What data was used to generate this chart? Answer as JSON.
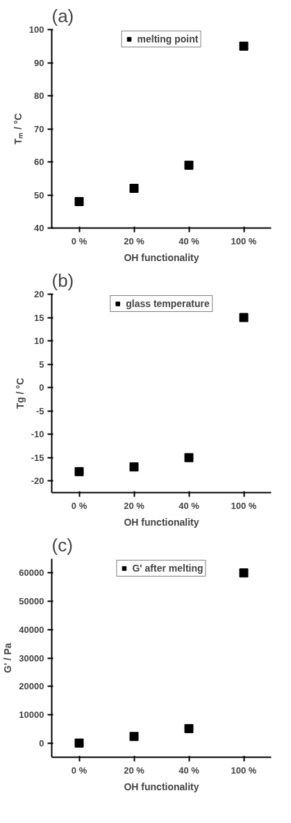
{
  "chart_data": [
    {
      "type": "scatter",
      "title": "(a)",
      "xlabel": "OH functionality",
      "ylabel": "Tₘ / °C",
      "categories": [
        "0 %",
        "20 %",
        "40 %",
        "100 %"
      ],
      "series": [
        {
          "name": "melting point",
          "color": "#000000",
          "values": [
            48,
            52,
            59,
            95
          ]
        }
      ],
      "ylim": [
        40,
        100
      ],
      "yticks": [
        40,
        50,
        60,
        70,
        80,
        90,
        100
      ],
      "marker": "square",
      "legend": "top",
      "grid": false
    },
    {
      "type": "scatter",
      "title": "(b)",
      "xlabel": "OH functionality",
      "ylabel": "Tg / °C",
      "categories": [
        "0 %",
        "20 %",
        "40 %",
        "100 %"
      ],
      "series": [
        {
          "name": "glass temperature",
          "color": "#000000",
          "values": [
            -18,
            -17,
            -15,
            15
          ]
        }
      ],
      "ylim": [
        -22.5,
        20
      ],
      "yticks": [
        -20,
        -15,
        -10,
        -5,
        0,
        5,
        10,
        15,
        20
      ],
      "marker": "square",
      "legend": "top",
      "grid": false
    },
    {
      "type": "scatter",
      "title": "(c)",
      "xlabel": "OH functionality",
      "ylabel": "G' / Pa",
      "categories": [
        "0 %",
        "20 %",
        "40 %",
        "100 %"
      ],
      "series": [
        {
          "name": "G' after melting",
          "color": "#000000",
          "values": [
            0,
            2300,
            5100,
            60000
          ]
        }
      ],
      "ylim": [
        -5000,
        65000
      ],
      "yticks": [
        0,
        10000,
        20000,
        30000,
        40000,
        50000,
        60000
      ],
      "marker": "square",
      "legend": "top",
      "grid": false
    }
  ]
}
